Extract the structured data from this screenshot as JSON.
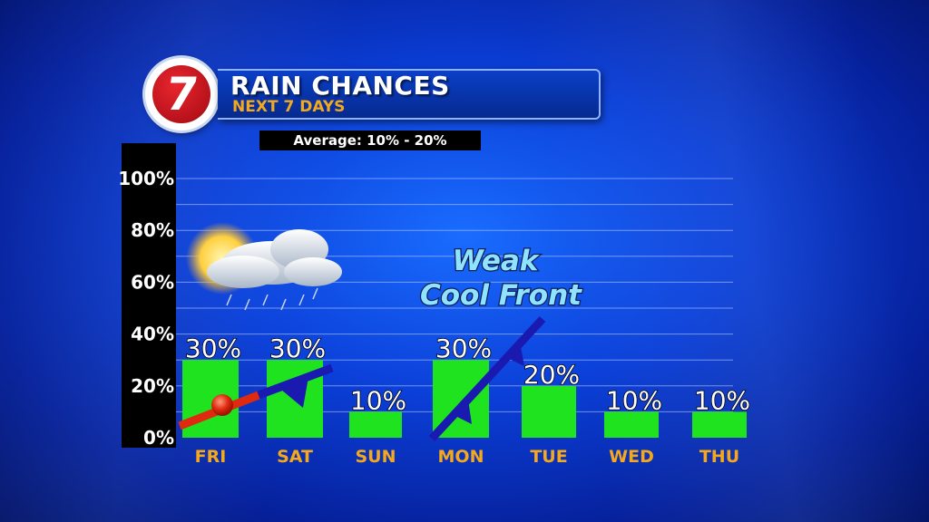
{
  "header": {
    "logo_number": "7",
    "title": "RAIN CHANCES",
    "subtitle": "NEXT 7 DAYS",
    "average": "Average: 10% - 20%"
  },
  "annotation": {
    "line1": "Weak",
    "line2": "Cool Front"
  },
  "colors": {
    "bar": "#1ee31e",
    "day_label": "#f4a81c",
    "warm_front": "#e02a10",
    "cold_front": "#1a1ab0"
  },
  "chart_data": {
    "type": "bar",
    "categories": [
      "FRI",
      "SAT",
      "SUN",
      "MON",
      "TUE",
      "WED",
      "THU"
    ],
    "values": [
      30,
      30,
      10,
      30,
      20,
      10,
      10
    ],
    "value_labels": [
      "30%",
      "30%",
      "10%",
      "30%",
      "20%",
      "10%",
      "10%"
    ],
    "ylim": [
      0,
      100
    ],
    "yticks": [
      0,
      20,
      40,
      60,
      80,
      100
    ],
    "ytick_labels": [
      "0%",
      "20%",
      "40%",
      "60%",
      "80%",
      "100%"
    ],
    "grid": true
  }
}
